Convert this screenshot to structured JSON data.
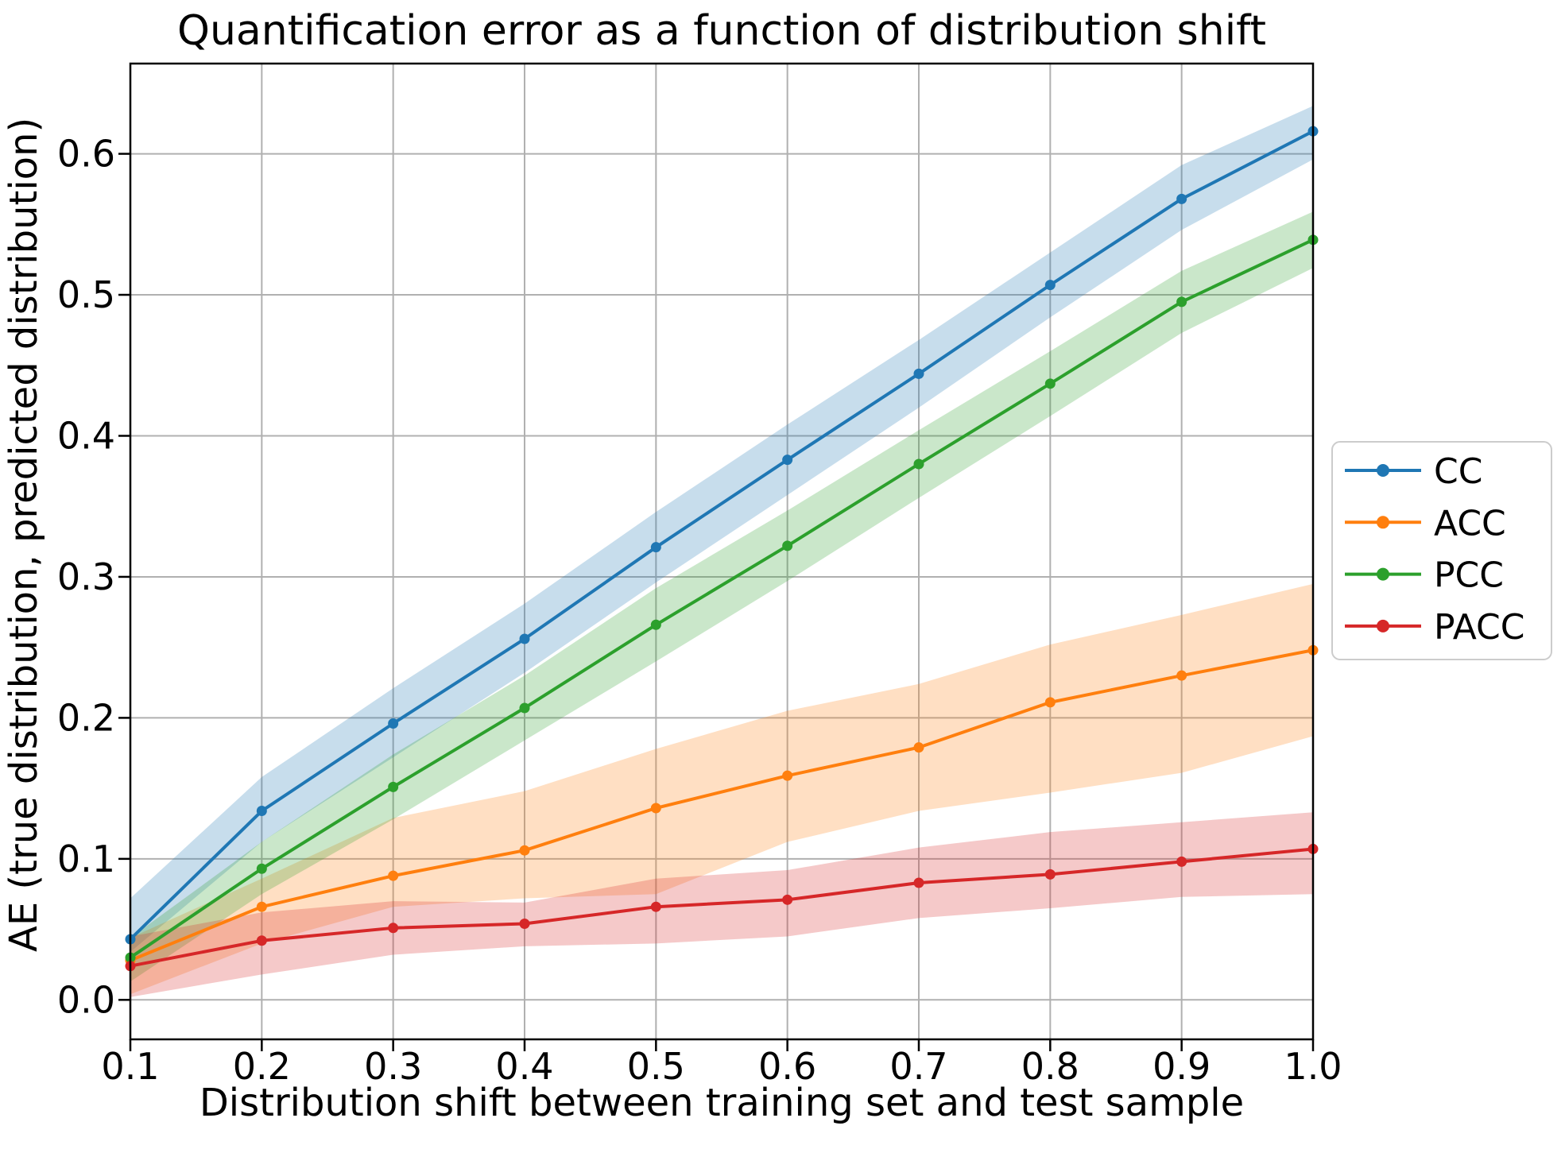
{
  "figure": {
    "title": "Quantification error as a function of distribution shift",
    "xlabel": "Distribution shift between training set and test sample",
    "ylabel": "AE (true distribution, predicted distribution)",
    "background_color": "#ffffff",
    "grid_color": "#b0b0b0",
    "spine_color": "#000000",
    "text_color": "#000000",
    "legend_border_color": "#cccccc"
  },
  "chart_data": {
    "type": "line",
    "title": "Quantification error as a function of distribution shift",
    "xlabel": "Distribution shift between training set and test sample",
    "ylabel": "AE (true distribution, predicted distribution)",
    "x": [
      0.1,
      0.2,
      0.3,
      0.4,
      0.5,
      0.6,
      0.7,
      0.8,
      0.9,
      1.0
    ],
    "xtick_labels": [
      "0.1",
      "0.2",
      "0.3",
      "0.4",
      "0.5",
      "0.6",
      "0.7",
      "0.8",
      "0.9",
      "1.0"
    ],
    "ytick_values": [
      0.0,
      0.1,
      0.2,
      0.3,
      0.4,
      0.5,
      0.6
    ],
    "ytick_labels": [
      "0.0",
      "0.1",
      "0.2",
      "0.3",
      "0.4",
      "0.5",
      "0.6"
    ],
    "xlim": [
      0.1,
      1.0
    ],
    "ylim": [
      -0.028,
      0.664
    ],
    "grid": true,
    "legend_position": "center right, outside axes",
    "band_opacity": 0.25,
    "series": [
      {
        "name": "CC",
        "color": "#1f77b4",
        "values": [
          0.043,
          0.134,
          0.196,
          0.256,
          0.321,
          0.383,
          0.444,
          0.507,
          0.568,
          0.616
        ],
        "band_lower": [
          0.034,
          0.112,
          0.172,
          0.232,
          0.296,
          0.358,
          0.42,
          0.484,
          0.546,
          0.596
        ],
        "band_upper": [
          0.072,
          0.158,
          0.221,
          0.281,
          0.346,
          0.408,
          0.468,
          0.53,
          0.592,
          0.634
        ]
      },
      {
        "name": "ACC",
        "color": "#ff7f0e",
        "values": [
          0.028,
          0.066,
          0.088,
          0.106,
          0.136,
          0.159,
          0.179,
          0.211,
          0.23,
          0.248
        ],
        "band_lower": [
          0.004,
          0.04,
          0.066,
          0.072,
          0.075,
          0.112,
          0.134,
          0.147,
          0.161,
          0.187
        ],
        "band_upper": [
          0.044,
          0.086,
          0.129,
          0.148,
          0.178,
          0.205,
          0.224,
          0.252,
          0.273,
          0.295
        ]
      },
      {
        "name": "PCC",
        "color": "#2ca02c",
        "values": [
          0.03,
          0.093,
          0.151,
          0.207,
          0.266,
          0.322,
          0.38,
          0.437,
          0.495,
          0.539
        ],
        "band_lower": [
          0.013,
          0.075,
          0.128,
          0.184,
          0.24,
          0.297,
          0.356,
          0.414,
          0.473,
          0.519
        ],
        "band_upper": [
          0.044,
          0.112,
          0.174,
          0.23,
          0.292,
          0.347,
          0.404,
          0.46,
          0.517,
          0.559
        ]
      },
      {
        "name": "PACC",
        "color": "#d62728",
        "values": [
          0.024,
          0.042,
          0.051,
          0.054,
          0.066,
          0.071,
          0.083,
          0.089,
          0.098,
          0.107
        ],
        "band_lower": [
          0.002,
          0.018,
          0.032,
          0.038,
          0.04,
          0.045,
          0.058,
          0.065,
          0.073,
          0.075
        ],
        "band_upper": [
          0.045,
          0.062,
          0.07,
          0.069,
          0.086,
          0.092,
          0.108,
          0.119,
          0.126,
          0.133
        ]
      }
    ]
  }
}
